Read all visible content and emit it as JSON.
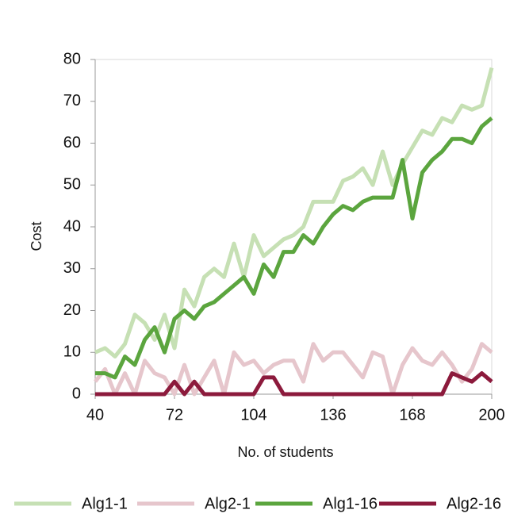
{
  "chart_data": {
    "type": "line",
    "x_label": "No. of students",
    "y_label": "Cost",
    "x": [
      40,
      44,
      48,
      52,
      56,
      60,
      64,
      68,
      72,
      76,
      80,
      84,
      88,
      92,
      96,
      100,
      104,
      108,
      112,
      116,
      120,
      124,
      128,
      132,
      136,
      140,
      144,
      148,
      152,
      156,
      160,
      164,
      168,
      172,
      176,
      180,
      184,
      188,
      192,
      196,
      200
    ],
    "series": [
      {
        "name": "Alg1-1",
        "color": "#c6e0b4",
        "values": [
          10,
          11,
          9,
          12,
          19,
          17,
          13,
          19,
          11,
          25,
          21,
          28,
          30,
          28,
          36,
          28,
          38,
          33,
          35,
          37,
          38,
          40,
          46,
          46,
          46,
          51,
          52,
          54,
          50,
          58,
          50,
          55,
          59,
          63,
          62,
          66,
          65,
          69,
          68,
          69,
          78
        ]
      },
      {
        "name": "Alg2-1",
        "color": "#e6c6cc",
        "values": [
          3,
          6,
          0,
          5,
          0,
          8,
          5,
          4,
          0,
          7,
          0,
          4,
          8,
          0,
          10,
          7,
          8,
          5,
          7,
          8,
          8,
          3,
          12,
          8,
          10,
          10,
          7,
          4,
          10,
          9,
          0,
          7,
          11,
          8,
          7,
          10,
          7,
          3,
          6,
          12,
          10
        ]
      },
      {
        "name": "Alg1-16",
        "color": "#5ba53e",
        "values": [
          5,
          5,
          4,
          9,
          7,
          13,
          16,
          10,
          18,
          20,
          18,
          21,
          22,
          24,
          26,
          28,
          24,
          31,
          28,
          34,
          34,
          38,
          36,
          40,
          43,
          45,
          44,
          46,
          47,
          47,
          47,
          56,
          42,
          53,
          56,
          58,
          61,
          61,
          60,
          64,
          66
        ]
      },
      {
        "name": "Alg2-16",
        "color": "#8c1a3c",
        "values": [
          0,
          0,
          0,
          0,
          0,
          0,
          0,
          0,
          3,
          0,
          3,
          0,
          0,
          0,
          0,
          0,
          0,
          4,
          4,
          0,
          0,
          0,
          0,
          0,
          0,
          0,
          0,
          0,
          0,
          0,
          0,
          0,
          0,
          0,
          0,
          0,
          5,
          4,
          3,
          5,
          3
        ]
      }
    ],
    "xlim": [
      40,
      200
    ],
    "xticks": [
      40,
      72,
      104,
      136,
      168,
      200
    ],
    "ylim": [
      0,
      80
    ],
    "yticks": [
      0,
      10,
      20,
      30,
      40,
      50,
      60,
      70,
      80
    ],
    "legend": "bottom"
  }
}
